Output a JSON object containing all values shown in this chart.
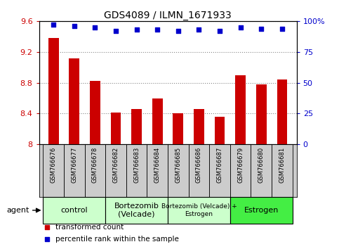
{
  "title": "GDS4089 / ILMN_1671933",
  "samples": [
    "GSM766676",
    "GSM766677",
    "GSM766678",
    "GSM766682",
    "GSM766683",
    "GSM766684",
    "GSM766685",
    "GSM766686",
    "GSM766687",
    "GSM766679",
    "GSM766680",
    "GSM766681"
  ],
  "bar_values": [
    9.38,
    9.12,
    8.82,
    8.41,
    8.46,
    8.6,
    8.4,
    8.46,
    8.36,
    8.9,
    8.78,
    8.84
  ],
  "percentile_values": [
    97,
    96,
    95,
    92,
    93,
    93,
    92,
    93,
    92,
    95,
    94,
    94
  ],
  "bar_color": "#cc0000",
  "percentile_color": "#0000cc",
  "ylim_left": [
    8.0,
    9.6
  ],
  "ylim_right": [
    0,
    100
  ],
  "yticks_left": [
    8.0,
    8.4,
    8.8,
    9.2,
    9.6
  ],
  "ytick_labels_left": [
    "8",
    "8.4",
    "8.8",
    "9.2",
    "9.6"
  ],
  "yticks_right": [
    0,
    25,
    50,
    75,
    100
  ],
  "ytick_labels_right": [
    "0",
    "25",
    "50",
    "75",
    "100%"
  ],
  "groups": [
    {
      "label": "control",
      "start": 0,
      "end": 3,
      "color": "#ccffcc",
      "fontsize": 8
    },
    {
      "label": "Bortezomib\n(Velcade)",
      "start": 3,
      "end": 6,
      "color": "#ccffcc",
      "fontsize": 8
    },
    {
      "label": "Bortezomib (Velcade) +\nEstrogen",
      "start": 6,
      "end": 9,
      "color": "#ccffcc",
      "fontsize": 6.5
    },
    {
      "label": "Estrogen",
      "start": 9,
      "end": 12,
      "color": "#44ee44",
      "fontsize": 8
    }
  ],
  "agent_label": "agent",
  "legend_items": [
    {
      "label": "transformed count",
      "color": "#cc0000",
      "marker": "s"
    },
    {
      "label": "percentile rank within the sample",
      "color": "#0000cc",
      "marker": "s"
    }
  ],
  "grid_color": "#888888",
  "sample_bg_color": "#cccccc",
  "background_color": "#ffffff",
  "bar_width": 0.5,
  "tick_label_color_left": "#cc0000",
  "tick_label_color_right": "#0000cc",
  "title_fontsize": 10
}
